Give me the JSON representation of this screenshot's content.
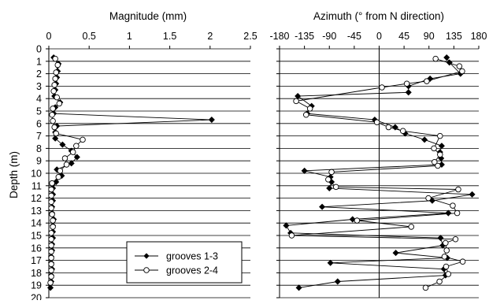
{
  "chart_data": [
    {
      "type": "line",
      "title": "Magnitude (mm)",
      "ylabel": "Depth (m)",
      "xlim": [
        0,
        2.5
      ],
      "ylim": [
        20,
        0
      ],
      "x_ticks": [
        "0",
        "0.5",
        "1",
        "1.5",
        "2",
        "2.5"
      ],
      "y_ticks": [
        "0",
        "1",
        "2",
        "3",
        "4",
        "5",
        "6",
        "7",
        "8",
        "9",
        "10",
        "11",
        "12",
        "13",
        "14",
        "15",
        "16",
        "17",
        "18",
        "19",
        "20"
      ],
      "grid": "horizontal",
      "series": [
        {
          "name": "grooves 1-3",
          "marker": "filled-diamond",
          "color": "#000000",
          "points": [
            [
              0.06,
              0.7
            ],
            [
              0.12,
              1.2
            ],
            [
              0.11,
              1.8
            ],
            [
              0.1,
              2.3
            ],
            [
              0.09,
              2.8
            ],
            [
              0.08,
              3.3
            ],
            [
              0.07,
              3.8
            ],
            [
              0.14,
              4.3
            ],
            [
              0.08,
              4.7
            ],
            [
              0.06,
              5.2
            ],
            [
              2.02,
              5.7
            ],
            [
              0.1,
              6.2
            ],
            [
              0.08,
              6.7
            ],
            [
              0.08,
              7.2
            ],
            [
              0.17,
              7.7
            ],
            [
              0.28,
              8.2
            ],
            [
              0.35,
              8.7
            ],
            [
              0.28,
              9.2
            ],
            [
              0.1,
              9.7
            ],
            [
              0.16,
              10.2
            ],
            [
              0.09,
              10.7
            ],
            [
              0.05,
              11.2
            ],
            [
              0.05,
              11.7
            ],
            [
              0.05,
              12.2
            ],
            [
              0.04,
              12.7
            ],
            [
              0.04,
              13.2
            ],
            [
              0.06,
              13.7
            ],
            [
              0.05,
              14.2
            ],
            [
              0.05,
              14.7
            ],
            [
              0.05,
              15.2
            ],
            [
              0.04,
              15.7
            ],
            [
              0.04,
              16.2
            ],
            [
              0.03,
              16.7
            ],
            [
              0.03,
              17.2
            ],
            [
              0.04,
              17.7
            ],
            [
              0.03,
              18.2
            ],
            [
              0.03,
              18.7
            ],
            [
              0.02,
              19.2
            ]
          ]
        },
        {
          "name": "grooves 2-4",
          "marker": "open-circle",
          "color": "#000000",
          "points": [
            [
              0.08,
              0.8
            ],
            [
              0.11,
              1.3
            ],
            [
              0.09,
              1.9
            ],
            [
              0.08,
              2.4
            ],
            [
              0.07,
              2.9
            ],
            [
              0.06,
              3.4
            ],
            [
              0.1,
              3.9
            ],
            [
              0.13,
              4.4
            ],
            [
              0.05,
              4.8
            ],
            [
              0.04,
              5.3
            ],
            [
              0.05,
              5.8
            ],
            [
              0.07,
              6.3
            ],
            [
              0.09,
              6.8
            ],
            [
              0.42,
              7.3
            ],
            [
              0.34,
              7.8
            ],
            [
              0.3,
              8.3
            ],
            [
              0.2,
              8.8
            ],
            [
              0.22,
              9.3
            ],
            [
              0.14,
              9.8
            ],
            [
              0.12,
              10.3
            ],
            [
              0.04,
              10.8
            ],
            [
              0.03,
              11.3
            ],
            [
              0.03,
              11.8
            ],
            [
              0.03,
              12.3
            ],
            [
              0.03,
              12.8
            ],
            [
              0.04,
              13.3
            ],
            [
              0.05,
              13.8
            ],
            [
              0.05,
              14.3
            ],
            [
              0.03,
              14.8
            ],
            [
              0.03,
              15.3
            ],
            [
              0.03,
              15.8
            ],
            [
              0.03,
              16.3
            ],
            [
              0.03,
              16.8
            ],
            [
              0.03,
              17.3
            ],
            [
              0.03,
              17.8
            ],
            [
              0.03,
              18.3
            ],
            [
              0.02,
              18.8
            ]
          ]
        }
      ]
    },
    {
      "type": "line",
      "title": "Azimuth (° from N direction)",
      "ylabel": "",
      "xlim": [
        -180,
        180
      ],
      "ylim": [
        20,
        0
      ],
      "x_ticks": [
        "-180",
        "-135",
        "-90",
        "-45",
        "0",
        "45",
        "90",
        "135",
        "180"
      ],
      "y_ticks": [],
      "grid": "horizontal",
      "reference_line_x": 0,
      "series": [
        {
          "name": "grooves 1-3",
          "marker": "filled-diamond",
          "color": "#000000",
          "points": [
            [
              122,
              0.7
            ],
            [
              127,
              1.1
            ],
            [
              147,
              2.0
            ],
            [
              92,
              2.4
            ],
            [
              53,
              3.0
            ],
            [
              53,
              3.5
            ],
            [
              -147,
              3.8
            ],
            [
              -122,
              4.6
            ],
            [
              -130,
              5.2
            ],
            [
              -8,
              5.7
            ],
            [
              29,
              6.3
            ],
            [
              47,
              6.8
            ],
            [
              82,
              7.3
            ],
            [
              113,
              7.8
            ],
            [
              110,
              8.3
            ],
            [
              112,
              8.8
            ],
            [
              113,
              9.3
            ],
            [
              -135,
              9.8
            ],
            [
              -88,
              10.3
            ],
            [
              -86,
              10.7
            ],
            [
              -90,
              11.2
            ],
            [
              168,
              11.7
            ],
            [
              96,
              12.2
            ],
            [
              -103,
              12.7
            ],
            [
              125,
              13.2
            ],
            [
              -48,
              13.7
            ],
            [
              -168,
              14.2
            ],
            [
              -160,
              14.8
            ],
            [
              111,
              15.2
            ],
            [
              115,
              15.8
            ],
            [
              30,
              16.4
            ],
            [
              123,
              16.8
            ],
            [
              -88,
              17.2
            ],
            [
              117,
              17.7
            ],
            [
              120,
              18.2
            ],
            [
              -75,
              18.7
            ],
            [
              -145,
              19.2
            ]
          ]
        },
        {
          "name": "grooves 2-4",
          "marker": "open-circle",
          "color": "#000000",
          "points": [
            [
              102,
              0.8
            ],
            [
              145,
              1.4
            ],
            [
              150,
              1.8
            ],
            [
              86,
              2.6
            ],
            [
              50,
              2.8
            ],
            [
              5,
              3.1
            ],
            [
              -150,
              4.2
            ],
            [
              -125,
              4.8
            ],
            [
              -132,
              5.3
            ],
            [
              -4,
              5.9
            ],
            [
              17,
              6.3
            ],
            [
              43,
              6.6
            ],
            [
              110,
              7.0
            ],
            [
              99,
              8.0
            ],
            [
              110,
              8.5
            ],
            [
              100,
              9.1
            ],
            [
              106,
              9.4
            ],
            [
              -86,
              9.9
            ],
            [
              -92,
              10.5
            ],
            [
              -78,
              11.1
            ],
            [
              143,
              11.3
            ],
            [
              89,
              12.0
            ],
            [
              133,
              12.6
            ],
            [
              141,
              13.2
            ],
            [
              -40,
              13.8
            ],
            [
              58,
              14.3
            ],
            [
              -158,
              15.0
            ],
            [
              138,
              15.3
            ],
            [
              120,
              15.6
            ],
            [
              122,
              16.2
            ],
            [
              118,
              16.7
            ],
            [
              151,
              17.1
            ],
            [
              121,
              17.5
            ],
            [
              125,
              18.1
            ],
            [
              109,
              18.7
            ],
            [
              84,
              19.2
            ]
          ]
        }
      ]
    }
  ],
  "legend": {
    "placement": "bottom-left of left panel",
    "entries": [
      {
        "label": "grooves 1-3",
        "marker": "filled-diamond"
      },
      {
        "label": "grooves 2-4",
        "marker": "open-circle"
      }
    ]
  }
}
